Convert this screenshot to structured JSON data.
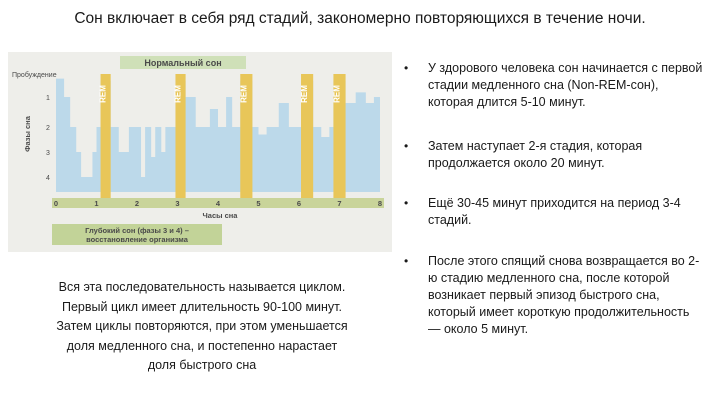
{
  "slide": {
    "title": "Сон включает в себя ряд стадий, закономерно повторяющихся в течение ночи.",
    "caption_lines": [
      "Вся эта последовательность называется циклом.",
      "Первый цикл имеет длительность 90-100 минут.",
      "Затем циклы повторяются, при этом уменьшается",
      "доля медленного сна, и постепенно нарастает",
      "доля быстрого сна"
    ],
    "bullets": [
      "У здорового человека сон начинается с первой стадии медленного сна (Non-REM-сон), которая длится 5-10 минут.",
      "Затем наступает 2-я стадия, которая продолжается около 20 минут.",
      "Ещё 30-45 минут приходится на период 3-4 стадий.",
      "После этого спящий снова возвращается во 2-ю стадию медленного сна, после которой возникает первый эпизод быстрого сна, который имеет короткую продолжительность — около 5 минут."
    ],
    "bullet_marker": "•"
  },
  "chart_data": {
    "type": "bar",
    "title": "Нормальный сон",
    "xlabel": "Часы сна",
    "ylabel": "Фазы сна",
    "x_ticks": [
      0,
      1,
      2,
      3,
      4,
      5,
      6,
      7,
      8
    ],
    "y_ticks": [
      "Пробуждение",
      "1",
      "2",
      "3",
      "4"
    ],
    "xlim": [
      0,
      8
    ],
    "ylim": [
      0,
      4
    ],
    "rem_label": "REM",
    "rem_intervals": [
      [
        1.1,
        1.35
      ],
      [
        2.95,
        3.2
      ],
      [
        4.55,
        4.85
      ],
      [
        6.05,
        6.35
      ],
      [
        6.85,
        7.15
      ]
    ],
    "stage_profile": [
      [
        0.0,
        0.2
      ],
      [
        0.2,
        1
      ],
      [
        0.35,
        2
      ],
      [
        0.5,
        3
      ],
      [
        0.62,
        4
      ],
      [
        0.9,
        3
      ],
      [
        1.0,
        2
      ],
      [
        1.1,
        0.3
      ],
      [
        1.35,
        2
      ],
      [
        1.55,
        3
      ],
      [
        1.8,
        2
      ],
      [
        2.1,
        4
      ],
      [
        2.2,
        2
      ],
      [
        2.35,
        3.2
      ],
      [
        2.45,
        2
      ],
      [
        2.6,
        3
      ],
      [
        2.7,
        2
      ],
      [
        2.95,
        0.3
      ],
      [
        3.2,
        1
      ],
      [
        3.45,
        2
      ],
      [
        3.8,
        1.4
      ],
      [
        4.0,
        2
      ],
      [
        4.2,
        1
      ],
      [
        4.35,
        2
      ],
      [
        4.55,
        0.3
      ],
      [
        4.85,
        2
      ],
      [
        5.0,
        2.3
      ],
      [
        5.2,
        2
      ],
      [
        5.5,
        1.2
      ],
      [
        5.75,
        2
      ],
      [
        6.05,
        0.3
      ],
      [
        6.35,
        2
      ],
      [
        6.55,
        2.4
      ],
      [
        6.75,
        2
      ],
      [
        6.85,
        0.3
      ],
      [
        7.15,
        1.2
      ],
      [
        7.4,
        0.8
      ],
      [
        7.65,
        1.2
      ],
      [
        7.85,
        1
      ],
      [
        8.0,
        1
      ]
    ],
    "annotation": "Глубокий сон (фазы 3 и 4) – восстановление организма",
    "annotation_lines": [
      "Глубокий сон (фазы 3 и 4) –",
      "восстановление организма"
    ],
    "colors": {
      "background": "#eeeeea",
      "sleep_fill": "#bcd9ea",
      "rem": "#e8c659",
      "title_band": "#cfe0b8",
      "axis_bar": "#c9d49a",
      "annotation_bg": "#c2d398",
      "text": "#4a4a4a"
    }
  }
}
